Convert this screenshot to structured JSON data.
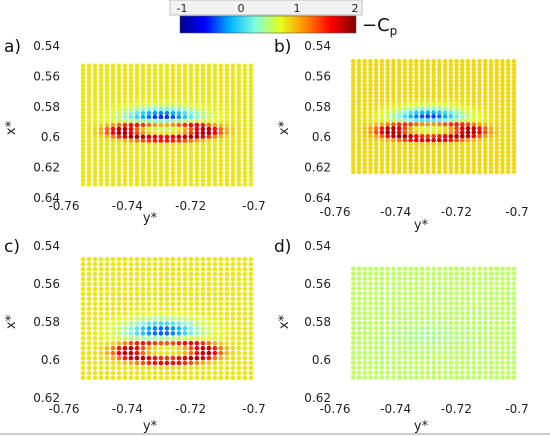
{
  "colorbar": {
    "ticks": [
      "-1",
      "0",
      "1",
      "2"
    ],
    "min": -1,
    "max": 2,
    "label": "−C",
    "label_sub": "p",
    "colors": [
      "#00008f",
      "#0000ff",
      "#00b4ff",
      "#7fffdf",
      "#e6ff1a",
      "#ff8800",
      "#ff0000",
      "#7f0000"
    ]
  },
  "chart_data": [
    {
      "type": "scatter",
      "panel_label": "a)",
      "xlabel": "y*",
      "ylabel": "x*",
      "xlim": [
        -0.76,
        -0.7
      ],
      "ylim": [
        0.64,
        0.54
      ],
      "xticks": [
        "-0.76",
        "-0.74",
        "-0.72",
        "-0.7"
      ],
      "yticks": [
        "0.54",
        "0.56",
        "0.58",
        "0.6",
        "0.62",
        "0.64"
      ],
      "grid": false,
      "field": {
        "y_min": -0.754,
        "y_max": -0.701,
        "x_top": 0.553,
        "x_bottom": 0.631,
        "ring_center": [
          -0.7285,
          0.596
        ],
        "ring_radii": [
          0.017,
          0.0065
        ],
        "ring_cp": 1.9,
        "suction_center": [
          -0.729,
          0.587
        ],
        "suction_cp": -0.5,
        "far_cp": 0.8
      }
    },
    {
      "type": "scatter",
      "panel_label": "b)",
      "xlabel": "y*",
      "ylabel": "x*",
      "xlim": [
        -0.76,
        -0.7
      ],
      "ylim": [
        0.64,
        0.54
      ],
      "xticks": [
        "-0.76",
        "-0.74",
        "-0.72",
        "-0.7"
      ],
      "yticks": [
        "0.54",
        "0.56",
        "0.58",
        "0.6",
        "0.62",
        "0.64"
      ],
      "grid": false,
      "field": {
        "y_min": -0.754,
        "y_max": -0.701,
        "x_top": 0.55,
        "x_bottom": 0.625,
        "ring_center": [
          -0.7285,
          0.596
        ],
        "ring_radii": [
          0.017,
          0.0065
        ],
        "ring_cp": 1.9,
        "suction_center": [
          -0.729,
          0.587
        ],
        "suction_cp": -0.45,
        "far_cp": 0.85
      }
    },
    {
      "type": "scatter",
      "panel_label": "c)",
      "xlabel": "y*",
      "ylabel": "x*",
      "xlim": [
        -0.76,
        -0.7
      ],
      "ylim": [
        0.62,
        0.54
      ],
      "xticks": [
        "-0.76",
        "-0.74",
        "-0.72",
        "-0.7"
      ],
      "yticks": [
        "0.54",
        "0.56",
        "0.58",
        "0.6",
        "0.62"
      ],
      "grid": false,
      "field": {
        "y_min": -0.754,
        "y_max": -0.701,
        "x_top": 0.547,
        "x_bottom": 0.611,
        "ring_center": [
          -0.7275,
          0.5955
        ],
        "ring_radii": [
          0.016,
          0.0065
        ],
        "ring_cp": 1.85,
        "suction_center": [
          -0.729,
          0.585
        ],
        "suction_cp": -0.4,
        "far_cp": 0.8
      }
    },
    {
      "type": "scatter",
      "panel_label": "d)",
      "xlabel": "y*",
      "ylabel": "x*",
      "xlim": [
        -0.76,
        -0.7
      ],
      "ylim": [
        0.62,
        0.54
      ],
      "xticks": [
        "-0.76",
        "-0.74",
        "-0.72",
        "-0.7"
      ],
      "yticks": [
        "0.54",
        "0.56",
        "0.58",
        "0.6",
        "0.62"
      ],
      "grid": false,
      "field": {
        "y_min": -0.754,
        "y_max": -0.701,
        "x_top": 0.552,
        "x_bottom": 0.611,
        "ring_center": [
          -0.7285,
          0.595
        ],
        "ring_radii": [
          0.016,
          0.0065
        ],
        "ring_cp": 0.55,
        "suction_center": [
          -0.729,
          0.587
        ],
        "suction_cp": 0.45,
        "far_cp": 0.55
      }
    }
  ]
}
